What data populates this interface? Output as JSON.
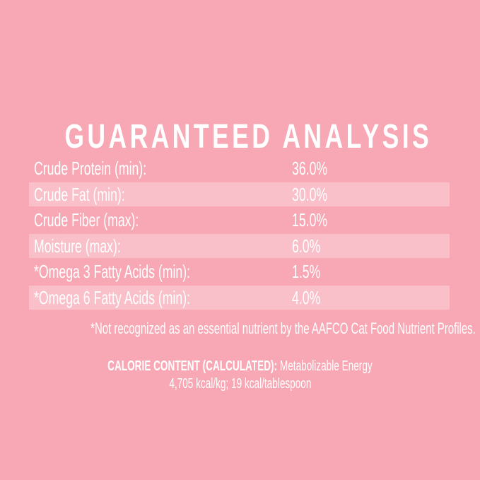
{
  "colors": {
    "background": "#F8A8B4",
    "row_stripe": "#FAC0C9",
    "text": "#FFFFFF"
  },
  "title": "GUARANTEED ANALYSIS",
  "analysis_table": {
    "rows": [
      {
        "label": "Crude Protein (min):",
        "value": "36.0%"
      },
      {
        "label": "Crude Fat (min):",
        "value": "30.0%"
      },
      {
        "label": "Crude Fiber (max):",
        "value": "15.0%"
      },
      {
        "label": "Moisture (max):",
        "value": "6.0%"
      },
      {
        "label": "*Omega 3 Fatty Acids (min):",
        "value": "1.5%"
      },
      {
        "label": "*Omega 6 Fatty Acids (min):",
        "value": "4.0%"
      }
    ]
  },
  "footnote": "*Not recognized as an essential nutrient by the AAFCO Cat Food Nutrient Profiles.",
  "calorie_content": {
    "heading": "CALORIE CONTENT (CALCULATED):",
    "description": "Metabolizable Energy",
    "values": "4,705 kcal/kg; 19 kcal/tablespoon"
  }
}
